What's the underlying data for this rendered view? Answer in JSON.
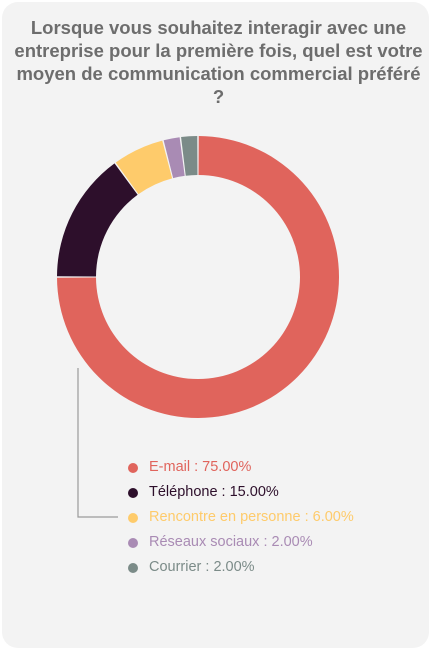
{
  "chart_data": {
    "type": "pie",
    "title": "Lorsque vous souhaitez interagir avec une entreprise pour la première fois, quel est votre moyen de communication commercial préféré ?",
    "series": [
      {
        "name": "E-mail",
        "value": 75.0,
        "label": "E-mail : 75.00%",
        "color": "#e0645c"
      },
      {
        "name": "Téléphone",
        "value": 15.0,
        "label": "Téléphone : 15.00%",
        "color": "#2d0f2b"
      },
      {
        "name": "Rencontre en personne",
        "value": 6.0,
        "label": "Rencontre en personne : 6.00%",
        "color": "#fecb6b"
      },
      {
        "name": "Réseaux sociaux",
        "value": 2.0,
        "label": "Réseaux sociaux : 2.00%",
        "color": "#a98bb4"
      },
      {
        "name": "Courrier",
        "value": 2.0,
        "label": "Courrier : 2.00%",
        "color": "#7b8b88"
      }
    ],
    "legend_position": "bottom",
    "donut": true
  }
}
